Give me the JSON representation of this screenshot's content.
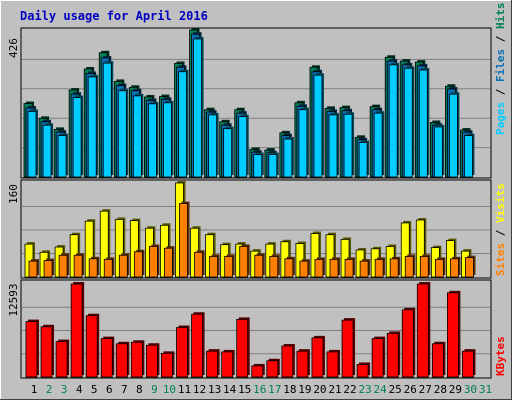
{
  "title": "Daily usage for April 2016",
  "colors": {
    "background": "#c0c0c0",
    "panel_bg": "#c0c0c0",
    "title": "#0000c0",
    "pages": "#00ccff",
    "files": "#0a6eb4",
    "hits": "#00805a",
    "visits": "#ffff00",
    "sites": "#ff8000",
    "kbytes": "#ff0000",
    "weekend_label": "#00805a",
    "weekday_label": "#000000"
  },
  "labels": {
    "pages": "Pages",
    "files": "Files",
    "hits": "Hits",
    "visits": "Visits",
    "sites": "Sites",
    "kbytes": "KBytes",
    "sep": " / "
  },
  "chart_data": [
    {
      "type": "bar",
      "name": "hits_files_pages",
      "ymax_label": "426",
      "ylim": [
        0,
        426
      ],
      "x": [
        1,
        2,
        3,
        4,
        5,
        6,
        7,
        8,
        9,
        10,
        11,
        12,
        13,
        14,
        15,
        16,
        17,
        18,
        19,
        20,
        21,
        22,
        23,
        24,
        25,
        26,
        27,
        28,
        29,
        30
      ],
      "weekend": [
        2,
        3,
        9,
        10,
        16,
        17,
        23,
        24,
        30,
        31
      ],
      "series": [
        {
          "name": "Hits",
          "values": [
            213,
            170,
            138,
            252,
            313,
            360,
            277,
            260,
            232,
            233,
            329,
            426,
            195,
            160,
            195,
            80,
            78,
            128,
            215,
            318,
            199,
            201,
            115,
            204,
            347,
            336,
            333,
            158,
            263,
            136
          ]
        },
        {
          "name": "Files",
          "values": [
            200,
            160,
            130,
            240,
            300,
            345,
            265,
            250,
            222,
            225,
            318,
            414,
            188,
            150,
            185,
            72,
            70,
            120,
            205,
            305,
            190,
            192,
            108,
            195,
            336,
            325,
            322,
            150,
            255,
            130
          ]
        },
        {
          "name": "Pages",
          "values": [
            190,
            150,
            120,
            230,
            290,
            330,
            250,
            235,
            212,
            215,
            305,
            400,
            180,
            140,
            175,
            65,
            65,
            110,
            195,
            295,
            180,
            182,
            100,
            185,
            325,
            315,
            310,
            145,
            240,
            120
          ]
        }
      ]
    },
    {
      "type": "bar",
      "name": "visits_sites",
      "ymax_label": "160",
      "ylim": [
        0,
        160
      ],
      "x": [
        1,
        2,
        3,
        4,
        5,
        6,
        7,
        8,
        9,
        10,
        11,
        12,
        13,
        14,
        15,
        16,
        17,
        18,
        19,
        20,
        21,
        22,
        23,
        24,
        25,
        26,
        27,
        28,
        29,
        30
      ],
      "series": [
        {
          "name": "Visits",
          "values": [
            56,
            42,
            51,
            72,
            95,
            112,
            98,
            96,
            83,
            88,
            160,
            83,
            72,
            55,
            56,
            44,
            56,
            60,
            57,
            74,
            72,
            64,
            46,
            48,
            52,
            92,
            97,
            50,
            62,
            44
          ]
        },
        {
          "name": "Sites",
          "values": [
            27,
            28,
            37,
            37,
            31,
            30,
            37,
            43,
            52,
            49,
            125,
            42,
            35,
            35,
            52,
            37,
            35,
            31,
            27,
            30,
            30,
            30,
            27,
            30,
            31,
            35,
            35,
            30,
            31,
            33
          ]
        }
      ]
    },
    {
      "type": "bar",
      "name": "kbytes",
      "ymax_label": "12593",
      "ylim": [
        0,
        12593
      ],
      "x": [
        1,
        2,
        3,
        4,
        5,
        6,
        7,
        8,
        9,
        10,
        11,
        12,
        13,
        14,
        15,
        16,
        17,
        18,
        19,
        20,
        21,
        22,
        23,
        24,
        25,
        26,
        27,
        28,
        29,
        30
      ],
      "series": [
        {
          "name": "KBytes",
          "values": [
            7500,
            6800,
            4800,
            12593,
            8300,
            5200,
            4500,
            4700,
            4300,
            3200,
            6700,
            8500,
            3500,
            3400,
            7800,
            1500,
            2200,
            4200,
            3500,
            5300,
            3400,
            7700,
            1700,
            5200,
            5900,
            9100,
            12593,
            4500,
            11400,
            3500
          ]
        }
      ]
    }
  ],
  "x_axis": {
    "days": [
      "1",
      "2",
      "3",
      "4",
      "5",
      "6",
      "7",
      "8",
      "9",
      "10",
      "11",
      "12",
      "13",
      "14",
      "15",
      "16",
      "17",
      "18",
      "19",
      "20",
      "21",
      "22",
      "23",
      "24",
      "25",
      "26",
      "27",
      "28",
      "29",
      "30",
      "31"
    ],
    "weekend_days": [
      "2",
      "3",
      "9",
      "10",
      "16",
      "17",
      "23",
      "24",
      "30",
      "31"
    ]
  }
}
